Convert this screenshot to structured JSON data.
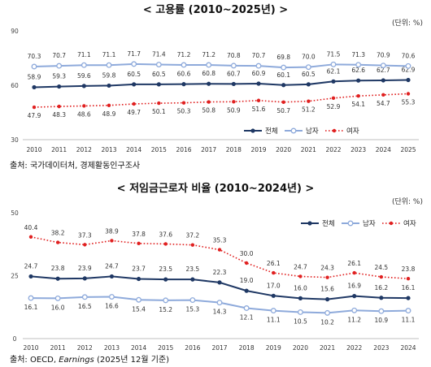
{
  "chart_data": [
    {
      "type": "line",
      "title": "< 고용률 (2010~2025년) >",
      "unit": "(단위: %)",
      "x": [
        "2010",
        "2011",
        "2012",
        "2013",
        "2014",
        "2015",
        "2016",
        "2017",
        "2018",
        "2019",
        "2020",
        "2021",
        "2022",
        "2023",
        "2024",
        "2025"
      ],
      "ylim": [
        30,
        90
      ],
      "yticks": [
        "30",
        "60",
        "90"
      ],
      "grid": false,
      "legend": "bottom-right",
      "series": [
        {
          "name": "전체",
          "color": "#1f3864",
          "marker": "filled",
          "dash": false,
          "values": [
            58.9,
            59.3,
            59.6,
            59.8,
            60.5,
            60.5,
            60.6,
            60.8,
            60.7,
            60.9,
            60.1,
            60.5,
            62.1,
            62.6,
            62.7,
            62.9
          ]
        },
        {
          "name": "남자",
          "color": "#8eaadb",
          "marker": "hollow",
          "dash": false,
          "values": [
            70.3,
            70.7,
            71.1,
            71.1,
            71.7,
            71.4,
            71.2,
            71.2,
            70.8,
            70.7,
            69.8,
            70.0,
            71.5,
            71.3,
            70.9,
            70.6
          ]
        },
        {
          "name": "여자",
          "color": "#e02020",
          "marker": "dot",
          "dash": true,
          "values": [
            47.9,
            48.3,
            48.6,
            48.9,
            49.7,
            50.1,
            50.3,
            50.8,
            50.9,
            51.6,
            50.7,
            51.2,
            52.9,
            54.1,
            54.7,
            55.3
          ]
        }
      ],
      "source": "출처:  국가데이터처, 경제활동인구조사"
    },
    {
      "type": "line",
      "title": "< 저임금근로자 비율 (2010~2024년) >",
      "unit": "(단위: %)",
      "x": [
        "2010",
        "2011",
        "2012",
        "2013",
        "2014",
        "2015",
        "2016",
        "2017",
        "2018",
        "2019",
        "2020",
        "2021",
        "2022",
        "2023",
        "2024"
      ],
      "ylim": [
        0,
        50
      ],
      "yticks": [
        "0",
        "25",
        "50"
      ],
      "grid": false,
      "legend": "top-right",
      "series": [
        {
          "name": "전체",
          "color": "#1f3864",
          "marker": "filled",
          "dash": false,
          "values": [
            24.7,
            23.8,
            23.9,
            24.7,
            23.7,
            23.5,
            23.5,
            22.3,
            19.0,
            17.0,
            16.0,
            15.6,
            16.9,
            16.2,
            16.1
          ]
        },
        {
          "name": "남자",
          "color": "#8eaadb",
          "marker": "hollow",
          "dash": false,
          "values": [
            16.1,
            16.0,
            16.5,
            16.6,
            15.4,
            15.2,
            15.3,
            14.3,
            12.1,
            11.1,
            10.5,
            10.2,
            11.2,
            10.9,
            11.1
          ]
        },
        {
          "name": "여자",
          "color": "#e02020",
          "marker": "dot",
          "dash": true,
          "values": [
            40.4,
            38.2,
            37.3,
            38.9,
            37.8,
            37.6,
            37.2,
            35.3,
            30.0,
            26.1,
            24.7,
            24.3,
            26.1,
            24.5,
            23.8
          ]
        }
      ],
      "source_prefix": "출처:  OECD, ",
      "source_italic": "Earnings",
      "source_suffix": " (2025년 12월 기준)"
    }
  ]
}
